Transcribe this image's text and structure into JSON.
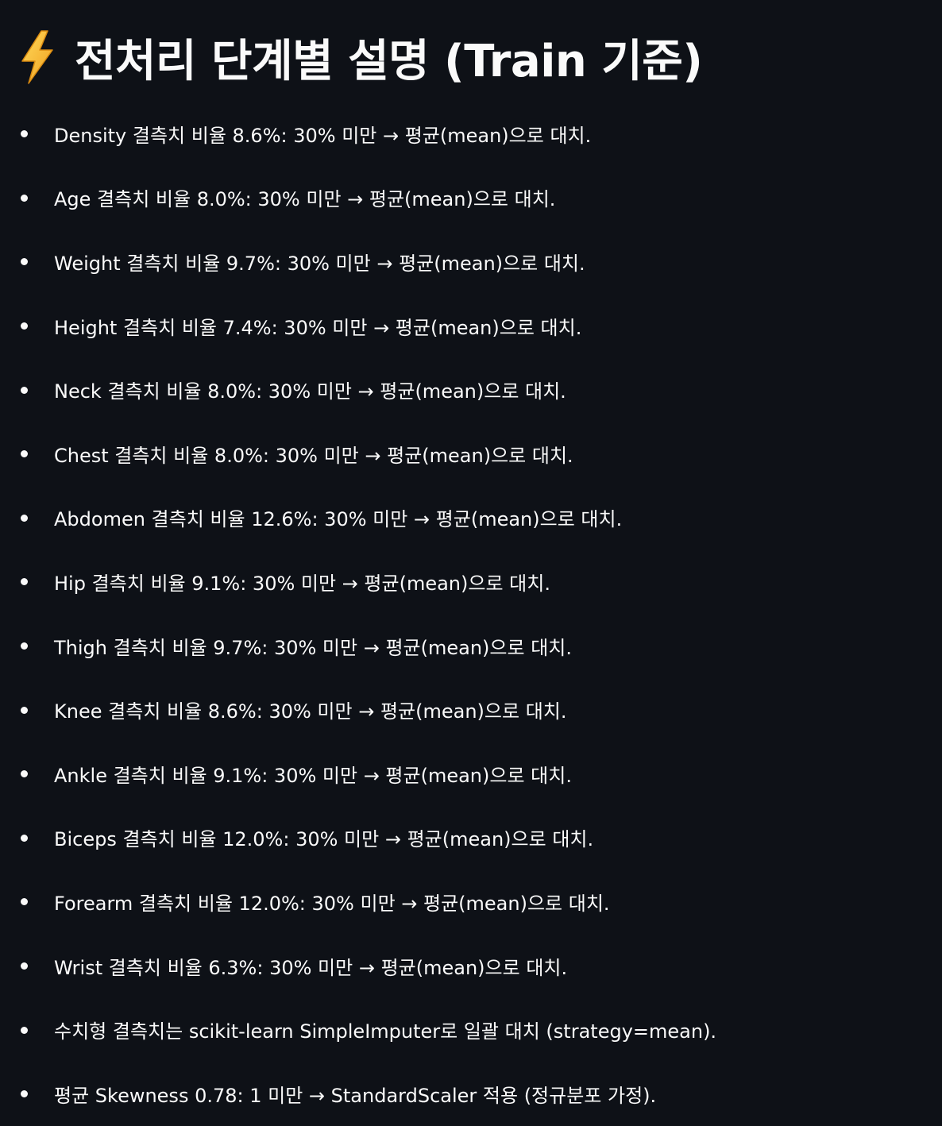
{
  "header": {
    "icon": "lightning-bolt-icon",
    "title": "전처리 단계별 설명 (Train 기준)"
  },
  "items": [
    "Density 결측치 비율 8.6%: 30% 미만 → 평균(mean)으로 대치.",
    "Age 결측치 비율 8.0%: 30% 미만 → 평균(mean)으로 대치.",
    "Weight 결측치 비율 9.7%: 30% 미만 → 평균(mean)으로 대치.",
    "Height 결측치 비율 7.4%: 30% 미만 → 평균(mean)으로 대치.",
    "Neck 결측치 비율 8.0%: 30% 미만 → 평균(mean)으로 대치.",
    "Chest 결측치 비율 8.0%: 30% 미만 → 평균(mean)으로 대치.",
    "Abdomen 결측치 비율 12.6%: 30% 미만 → 평균(mean)으로 대치.",
    "Hip 결측치 비율 9.1%: 30% 미만 → 평균(mean)으로 대치.",
    "Thigh 결측치 비율 9.7%: 30% 미만 → 평균(mean)으로 대치.",
    "Knee 결측치 비율 8.6%: 30% 미만 → 평균(mean)으로 대치.",
    "Ankle 결측치 비율 9.1%: 30% 미만 → 평균(mean)으로 대치.",
    "Biceps 결측치 비율 12.0%: 30% 미만 → 평균(mean)으로 대치.",
    "Forearm 결측치 비율 12.0%: 30% 미만 → 평균(mean)으로 대치.",
    "Wrist 결측치 비율 6.3%: 30% 미만 → 평균(mean)으로 대치.",
    "수치형 결측치는 scikit-learn SimpleImputer로 일괄 대치 (strategy=mean).",
    "평균 Skewness 0.78: 1 미만 → StandardScaler 적용 (정규분포 가정)."
  ],
  "colors": {
    "background": "#0e1117",
    "text": "#fafafa",
    "bolt": "#f5b731"
  }
}
